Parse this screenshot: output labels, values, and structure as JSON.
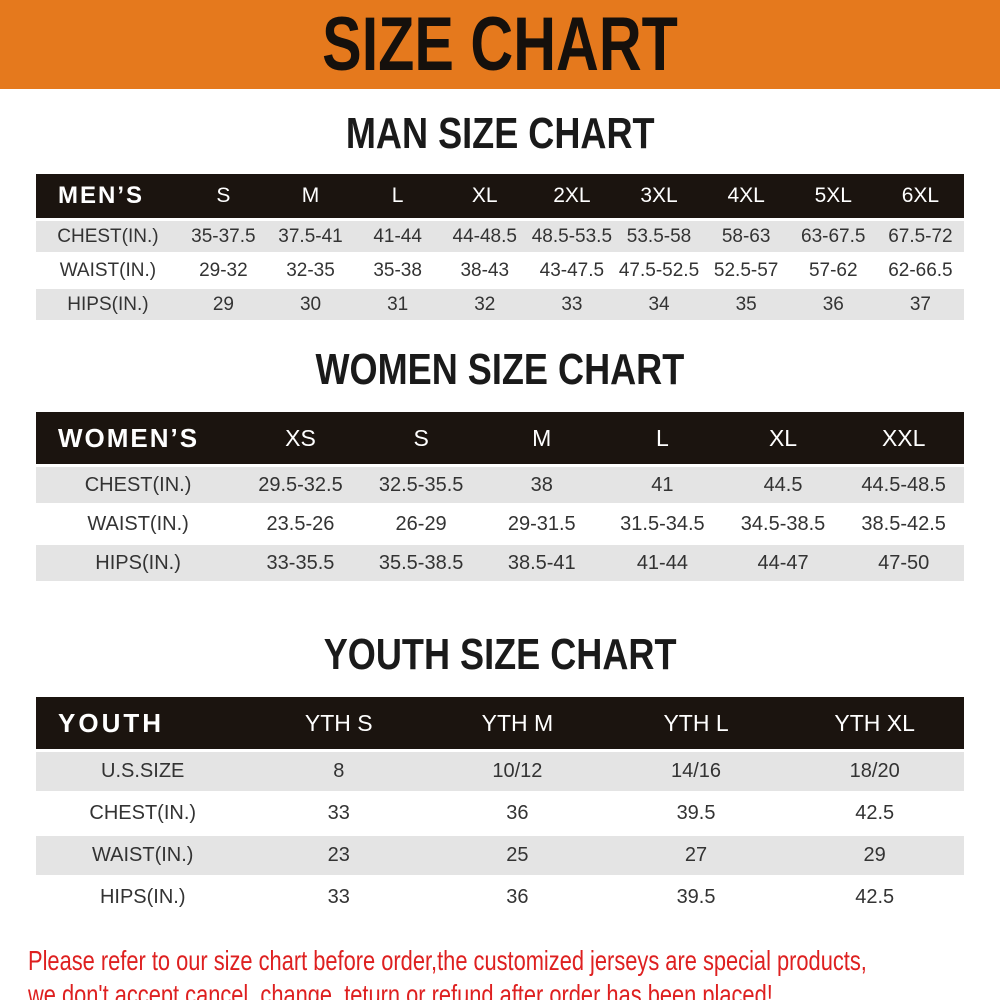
{
  "banner": {
    "title": "SIZE CHART"
  },
  "sections": [
    {
      "heading": "MAN SIZE CHART",
      "table": {
        "header": [
          "MEN’S",
          "S",
          "M",
          "L",
          "XL",
          "2XL",
          "3XL",
          "4XL",
          "5XL",
          "6XL"
        ],
        "rows": [
          [
            "CHEST(IN.)",
            "35-37.5",
            "37.5-41",
            "41-44",
            "44-48.5",
            "48.5-53.5",
            "53.5-58",
            "58-63",
            "63-67.5",
            "67.5-72"
          ],
          [
            "WAIST(IN.)",
            "29-32",
            "32-35",
            "35-38",
            "38-43",
            "43-47.5",
            "47.5-52.5",
            "52.5-57",
            "57-62",
            "62-66.5"
          ],
          [
            "HIPS(IN.)",
            "29",
            "30",
            "31",
            "32",
            "33",
            "34",
            "35",
            "36",
            "37"
          ]
        ]
      }
    },
    {
      "heading": "WOMEN SIZE CHART",
      "table": {
        "header": [
          "WOMEN’S",
          "XS",
          "S",
          "M",
          "L",
          "XL",
          "XXL"
        ],
        "rows": [
          [
            "CHEST(IN.)",
            "29.5-32.5",
            "32.5-35.5",
            "38",
            "41",
            "44.5",
            "44.5-48.5"
          ],
          [
            "WAIST(IN.)",
            "23.5-26",
            "26-29",
            "29-31.5",
            "31.5-34.5",
            "34.5-38.5",
            "38.5-42.5"
          ],
          [
            "HIPS(IN.)",
            "33-35.5",
            "35.5-38.5",
            "38.5-41",
            "41-44",
            "44-47",
            "47-50"
          ]
        ]
      }
    },
    {
      "heading": "YOUTH SIZE CHART",
      "table": {
        "header": [
          "YOUTH",
          "YTH S",
          "YTH M",
          "YTH L",
          "YTH XL"
        ],
        "rows": [
          [
            "U.S.SIZE",
            "8",
            "10/12",
            "14/16",
            "18/20"
          ],
          [
            "CHEST(IN.)",
            "33",
            "36",
            "39.5",
            "42.5"
          ],
          [
            "WAIST(IN.)",
            "23",
            "25",
            "27",
            "29"
          ],
          [
            "HIPS(IN.)",
            "33",
            "36",
            "39.5",
            "42.5"
          ]
        ]
      }
    }
  ],
  "footer": {
    "line1": "Please refer to our size chart before order,the customized jerseys are special products,",
    "line2": "we don't accept cancel, change, teturn or refund after order has been placed!"
  },
  "colors": {
    "banner_bg": "#E5791D",
    "header_bar": "#1B140F",
    "row_shade": "#E4E4E4",
    "footer_red": "#DE2020",
    "heading_text": "#1A1A1A"
  }
}
